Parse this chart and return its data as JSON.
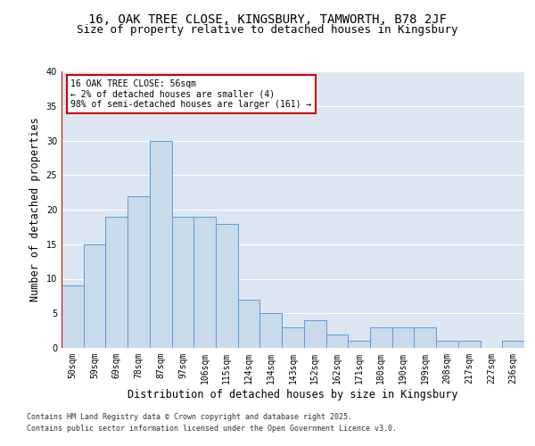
{
  "title1": "16, OAK TREE CLOSE, KINGSBURY, TAMWORTH, B78 2JF",
  "title2": "Size of property relative to detached houses in Kingsbury",
  "xlabel": "Distribution of detached houses by size in Kingsbury",
  "ylabel": "Number of detached properties",
  "categories": [
    "50sqm",
    "59sqm",
    "69sqm",
    "78sqm",
    "87sqm",
    "97sqm",
    "106sqm",
    "115sqm",
    "124sqm",
    "134sqm",
    "143sqm",
    "152sqm",
    "162sqm",
    "171sqm",
    "180sqm",
    "190sqm",
    "199sqm",
    "208sqm",
    "217sqm",
    "227sqm",
    "236sqm"
  ],
  "values": [
    9,
    15,
    19,
    22,
    30,
    19,
    19,
    18,
    7,
    5,
    3,
    4,
    2,
    1,
    3,
    3,
    3,
    1,
    1,
    0,
    1
  ],
  "bar_color": "#c9daea",
  "bar_edge_color": "#5b9bd5",
  "subject_label": "16 OAK TREE CLOSE: 56sqm",
  "annotation_line1": "← 2% of detached houses are smaller (4)",
  "annotation_line2": "98% of semi-detached houses are larger (161) →",
  "annotation_box_color": "#ffffff",
  "annotation_box_edge_color": "#cc0000",
  "subject_line_color": "#cc0000",
  "ylim": [
    0,
    40
  ],
  "yticks": [
    0,
    5,
    10,
    15,
    20,
    25,
    30,
    35,
    40
  ],
  "background_color": "#dce6f1",
  "footer1": "Contains HM Land Registry data © Crown copyright and database right 2025.",
  "footer2": "Contains public sector information licensed under the Open Government Licence v3.0.",
  "title_fontsize": 10,
  "subtitle_fontsize": 9,
  "tick_fontsize": 7,
  "label_fontsize": 8.5,
  "annotation_fontsize": 7,
  "footer_fontsize": 6
}
